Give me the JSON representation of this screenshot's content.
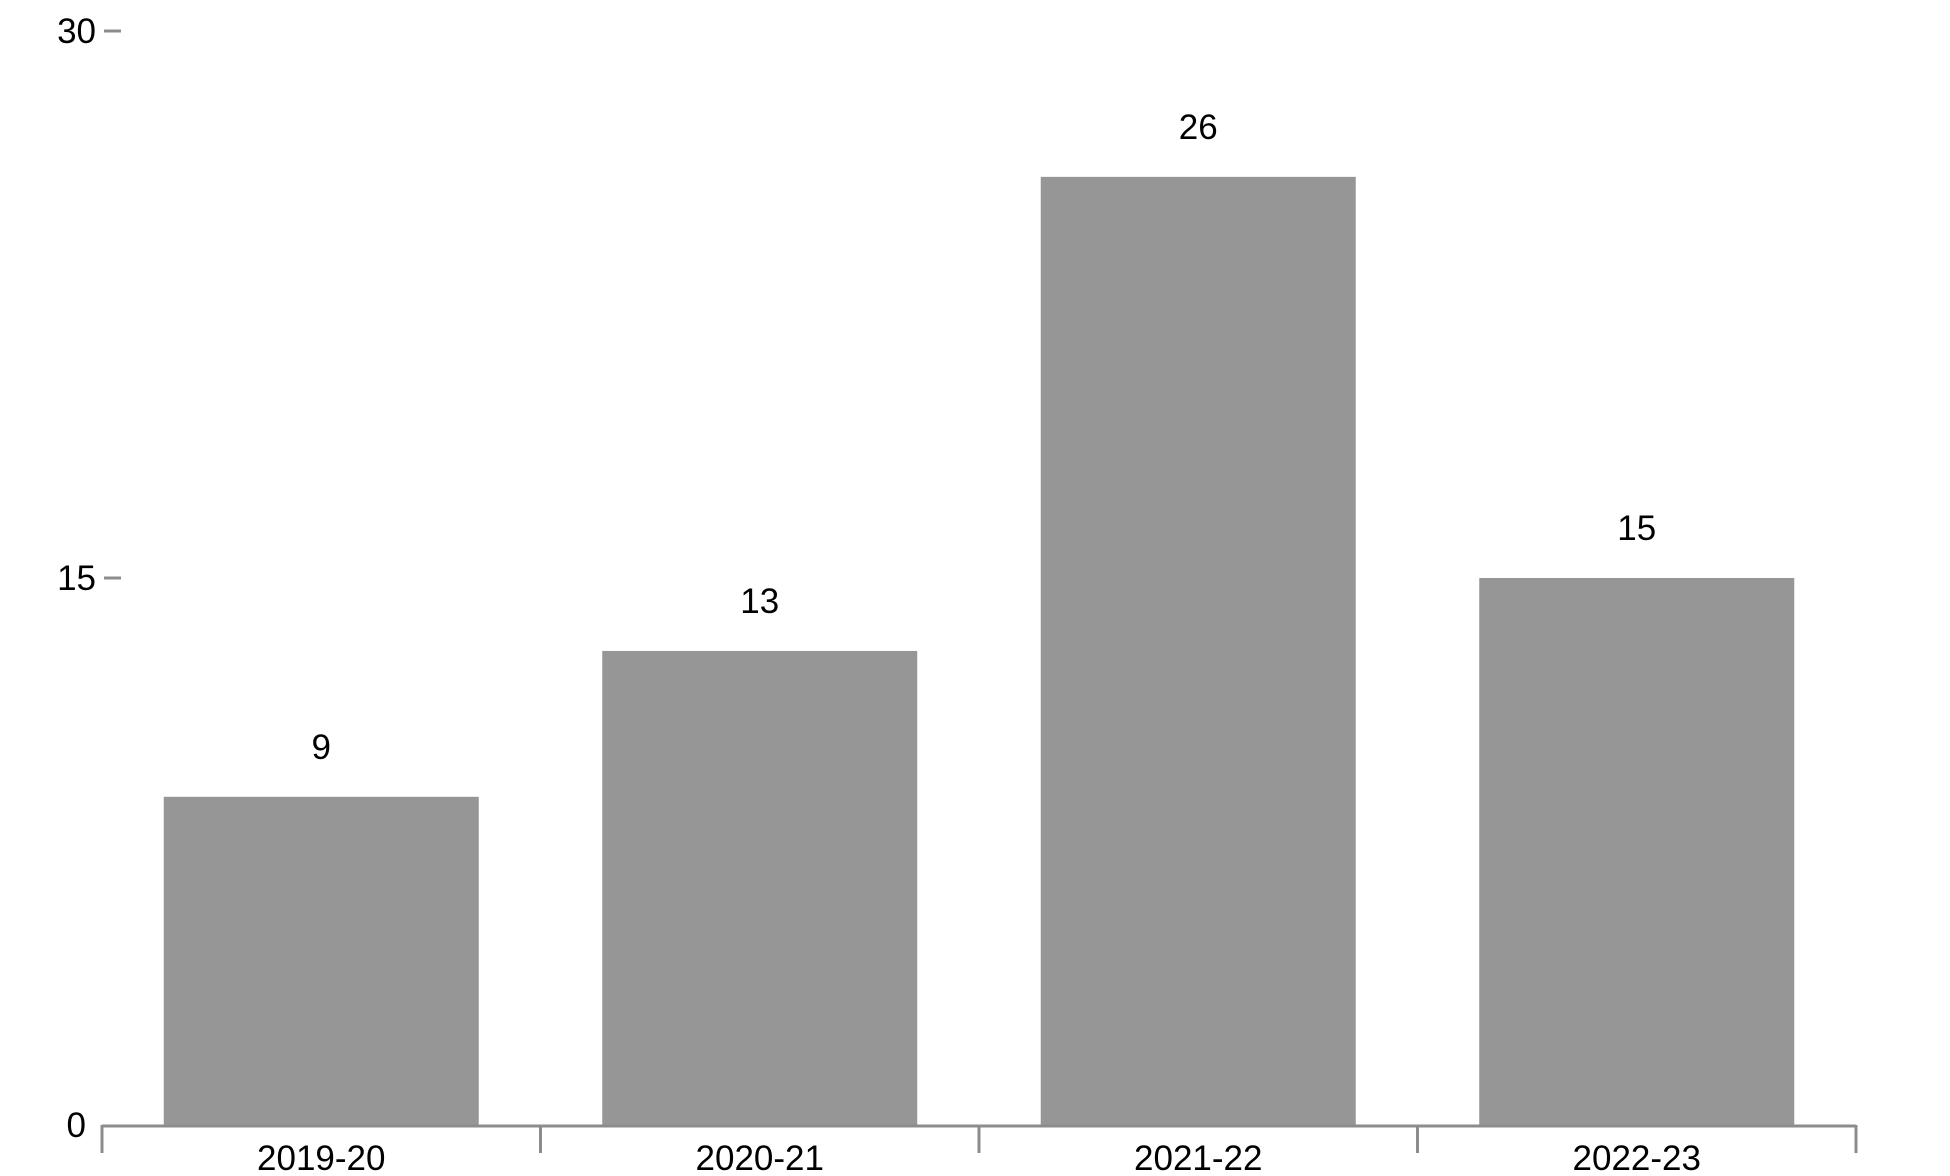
{
  "chart_data": {
    "type": "bar",
    "title": "",
    "xlabel": "",
    "ylabel": "",
    "categories": [
      "2019-20",
      "2020-21",
      "2021-22",
      "2022-23"
    ],
    "values": [
      9,
      13,
      26,
      15
    ],
    "data_labels": [
      "9",
      "13",
      "26",
      "15"
    ],
    "ylim": [
      0,
      30
    ],
    "yticks": [
      0,
      15,
      30
    ],
    "ytick_labels": [
      "0",
      "15",
      "30"
    ],
    "grid": false,
    "legend": "none",
    "bar_color": "#979696",
    "axis_color": "#8c8c8c"
  }
}
